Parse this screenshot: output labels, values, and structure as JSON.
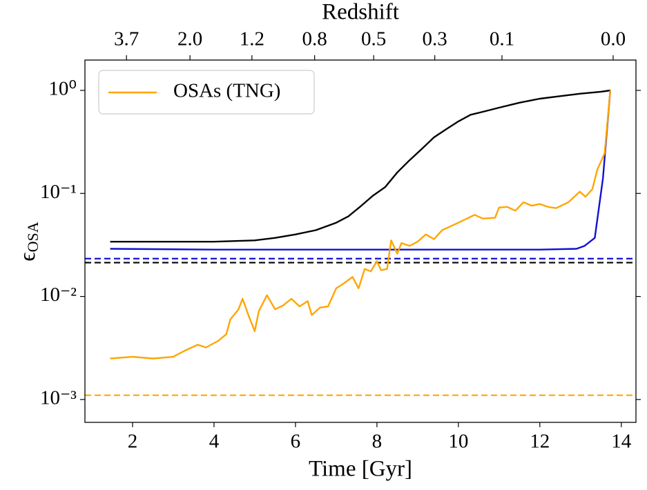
{
  "chart_data": {
    "type": "line",
    "log_y": true,
    "xlabel": "Time [Gyr]",
    "ylabel": {
      "symbol": "ϵ",
      "subscript": "OSA"
    },
    "x2label": "Redshift",
    "xlim": [
      0.83,
      14.36
    ],
    "ylim": [
      0.0006,
      1.97
    ],
    "xticks": [
      2,
      4,
      6,
      8,
      10,
      12,
      14
    ],
    "yticks": [
      {
        "value": 0.001,
        "label": "10⁻³"
      },
      {
        "value": 0.01,
        "label": "10⁻²"
      },
      {
        "value": 0.1,
        "label": "10⁻¹"
      },
      {
        "value": 1,
        "label": "10⁰"
      }
    ],
    "x2ticks": [
      {
        "value": 1.85,
        "label": "3.7"
      },
      {
        "value": 3.41,
        "label": "2.0"
      },
      {
        "value": 4.93,
        "label": "1.2"
      },
      {
        "value": 6.47,
        "label": "0.8"
      },
      {
        "value": 7.92,
        "label": "0.5"
      },
      {
        "value": 9.42,
        "label": "0.3"
      },
      {
        "value": 11.07,
        "label": "0.1"
      },
      {
        "value": 13.8,
        "label": "0.0"
      }
    ],
    "legend": "upper left",
    "series": [
      {
        "color": "#000000",
        "x": [
          1.45,
          2,
          3,
          4,
          5,
          5.5,
          6,
          6.5,
          7,
          7.3,
          7.6,
          7.9,
          8.2,
          8.5,
          8.8,
          9.1,
          9.4,
          9.7,
          10,
          10.3,
          10.6,
          11,
          11.5,
          12,
          12.5,
          13,
          13.5,
          13.73
        ],
        "values": [
          0.034,
          0.034,
          0.034,
          0.034,
          0.035,
          0.037,
          0.04,
          0.044,
          0.052,
          0.06,
          0.075,
          0.095,
          0.115,
          0.16,
          0.21,
          0.27,
          0.35,
          0.42,
          0.5,
          0.58,
          0.62,
          0.68,
          0.76,
          0.83,
          0.88,
          0.93,
          0.97,
          1.0
        ]
      },
      {
        "color": "#1010d0",
        "x": [
          1.45,
          4,
          8,
          12,
          12.9,
          13.1,
          13.35,
          13.55,
          13.73
        ],
        "values": [
          0.029,
          0.0285,
          0.0285,
          0.0285,
          0.029,
          0.031,
          0.037,
          0.14,
          1.0
        ]
      },
      {
        "name": "OSAs (TNG)",
        "color": "#ffa500",
        "x": [
          1.45,
          2,
          2.5,
          3,
          3.3,
          3.6,
          3.8,
          4.1,
          4.3,
          4.4,
          4.6,
          4.7,
          4.85,
          5.0,
          5.1,
          5.3,
          5.5,
          5.7,
          5.9,
          6.1,
          6.3,
          6.4,
          6.6,
          6.8,
          7.0,
          7.2,
          7.4,
          7.55,
          7.7,
          7.85,
          8.0,
          8.1,
          8.25,
          8.35,
          8.5,
          8.6,
          8.8,
          9.0,
          9.2,
          9.4,
          9.6,
          10.0,
          10.4,
          10.6,
          10.9,
          11.0,
          11.2,
          11.4,
          11.6,
          11.8,
          12.0,
          12.2,
          12.4,
          12.7,
          12.98,
          13.12,
          13.29,
          13.41,
          13.59,
          13.73
        ],
        "values": [
          0.0025,
          0.0026,
          0.0025,
          0.0026,
          0.003,
          0.0034,
          0.0032,
          0.0037,
          0.0043,
          0.006,
          0.0075,
          0.0095,
          0.0065,
          0.0046,
          0.0072,
          0.0103,
          0.0075,
          0.0082,
          0.0095,
          0.008,
          0.009,
          0.0066,
          0.0078,
          0.008,
          0.012,
          0.0135,
          0.0155,
          0.012,
          0.0185,
          0.0175,
          0.022,
          0.018,
          0.0185,
          0.035,
          0.026,
          0.033,
          0.031,
          0.034,
          0.04,
          0.036,
          0.044,
          0.052,
          0.062,
          0.057,
          0.058,
          0.073,
          0.074,
          0.068,
          0.082,
          0.076,
          0.079,
          0.074,
          0.072,
          0.082,
          0.104,
          0.093,
          0.11,
          0.17,
          0.245,
          1.0
        ]
      }
    ],
    "hlines": [
      {
        "value": 0.0233,
        "color": "#1010d0",
        "dashed": true
      },
      {
        "value": 0.0213,
        "color": "#000000",
        "dashed": true
      },
      {
        "value": 0.0011,
        "color": "#ffa500",
        "dashed": true
      }
    ]
  }
}
